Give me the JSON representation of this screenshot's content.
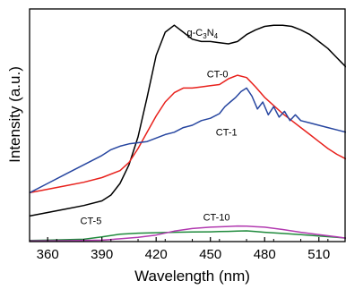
{
  "chart_data": {
    "type": "line",
    "title": "",
    "xlabel": "Wavelength (nm)",
    "ylabel": "Intensity (a.u.)",
    "xlim": [
      350,
      525
    ],
    "ylim": [
      0,
      1.0
    ],
    "xticks": [
      360,
      390,
      420,
      450,
      480,
      510
    ],
    "yticks_shown": false,
    "grid": false,
    "legend": "none (series labelled directly on plot)",
    "series": [
      {
        "name": "g-C3N4",
        "label_main": "g-C",
        "label_sub1": "3",
        "label_mid": "N",
        "label_sub2": "4",
        "color": "#000000",
        "label_at": [
          437,
          0.885
        ],
        "x": [
          350,
          360,
          370,
          380,
          390,
          395,
          400,
          405,
          410,
          415,
          420,
          425,
          430,
          435,
          440,
          445,
          450,
          455,
          460,
          465,
          470,
          475,
          480,
          485,
          490,
          495,
          500,
          505,
          510,
          515,
          520,
          525
        ],
        "y": [
          0.11,
          0.125,
          0.14,
          0.155,
          0.175,
          0.2,
          0.25,
          0.33,
          0.45,
          0.62,
          0.8,
          0.9,
          0.93,
          0.9,
          0.87,
          0.86,
          0.86,
          0.855,
          0.85,
          0.86,
          0.89,
          0.91,
          0.925,
          0.93,
          0.93,
          0.925,
          0.91,
          0.89,
          0.86,
          0.83,
          0.79,
          0.75
        ]
      },
      {
        "name": "CT-0",
        "color": "#e8211c",
        "label_at": [
          448,
          0.705
        ],
        "x": [
          350,
          360,
          370,
          380,
          390,
          400,
          405,
          410,
          415,
          420,
          425,
          430,
          435,
          440,
          445,
          450,
          455,
          460,
          465,
          470,
          475,
          480,
          485,
          490,
          495,
          500,
          505,
          510,
          515,
          520,
          525
        ],
        "y": [
          0.21,
          0.225,
          0.24,
          0.255,
          0.275,
          0.305,
          0.34,
          0.4,
          0.47,
          0.54,
          0.6,
          0.64,
          0.66,
          0.66,
          0.665,
          0.67,
          0.675,
          0.7,
          0.715,
          0.705,
          0.665,
          0.62,
          0.585,
          0.55,
          0.52,
          0.49,
          0.46,
          0.43,
          0.4,
          0.375,
          0.355
        ]
      },
      {
        "name": "CT-1",
        "color": "#2746a0",
        "label_at": [
          453,
          0.455
        ],
        "x": [
          350,
          360,
          370,
          380,
          390,
          395,
          400,
          405,
          410,
          415,
          420,
          425,
          430,
          435,
          440,
          445,
          450,
          455,
          458,
          461,
          464,
          467,
          470,
          473,
          476,
          479,
          482,
          485,
          488,
          491,
          494,
          497,
          500,
          505,
          510,
          515,
          520,
          525
        ],
        "y": [
          0.21,
          0.25,
          0.29,
          0.33,
          0.37,
          0.395,
          0.41,
          0.42,
          0.425,
          0.43,
          0.445,
          0.46,
          0.47,
          0.49,
          0.5,
          0.52,
          0.53,
          0.55,
          0.58,
          0.6,
          0.62,
          0.645,
          0.66,
          0.625,
          0.57,
          0.6,
          0.545,
          0.58,
          0.535,
          0.56,
          0.52,
          0.545,
          0.52,
          0.51,
          0.5,
          0.49,
          0.48,
          0.47
        ]
      },
      {
        "name": "CT-5",
        "color": "#1f8a3c",
        "label_at": [
          378,
          0.075
        ],
        "x": [
          350,
          360,
          370,
          380,
          390,
          400,
          410,
          420,
          430,
          440,
          450,
          455,
          460,
          465,
          470,
          475,
          480,
          490,
          500,
          510,
          520,
          525
        ],
        "y": [
          0.005,
          0.006,
          0.008,
          0.01,
          0.02,
          0.032,
          0.036,
          0.038,
          0.04,
          0.041,
          0.042,
          0.043,
          0.044,
          0.045,
          0.046,
          0.043,
          0.04,
          0.035,
          0.03,
          0.024,
          0.018,
          0.015
        ]
      },
      {
        "name": "CT-10",
        "color": "#b23ab0",
        "label_at": [
          446,
          0.09
        ],
        "x": [
          350,
          370,
          390,
          400,
          410,
          420,
          430,
          440,
          450,
          460,
          465,
          470,
          475,
          480,
          490,
          500,
          510,
          520,
          525
        ],
        "y": [
          0.003,
          0.004,
          0.006,
          0.012,
          0.018,
          0.028,
          0.045,
          0.056,
          0.062,
          0.065,
          0.067,
          0.066,
          0.064,
          0.062,
          0.052,
          0.04,
          0.03,
          0.02,
          0.015
        ]
      }
    ]
  }
}
